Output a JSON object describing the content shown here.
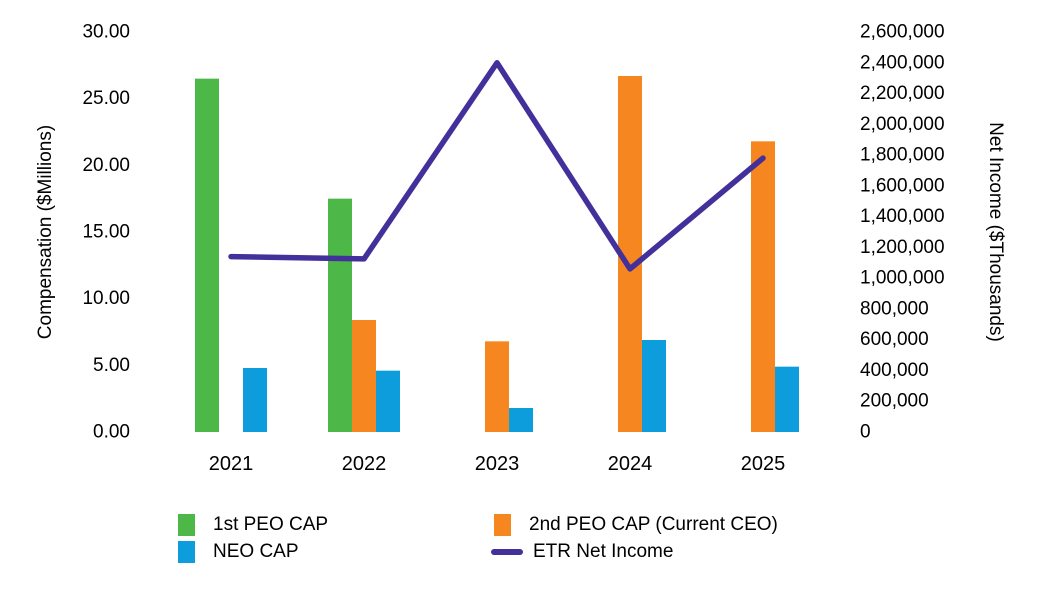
{
  "chart_data": {
    "type": "bar+line combo",
    "categories": [
      "2021",
      "2022",
      "2023",
      "2024",
      "2025"
    ],
    "bar_series": [
      {
        "name": "1st PEO CAP",
        "color": "#4DB748",
        "values": [
          26.5,
          17.5,
          0,
          0,
          0
        ]
      },
      {
        "name": "2nd PEO CAP (Current CEO)",
        "color": "#F6861F",
        "values": [
          0,
          8.4,
          6.8,
          26.7,
          21.8
        ]
      },
      {
        "name": "NEO CAP",
        "color": "#0E9DDC",
        "values": [
          4.8,
          4.6,
          1.8,
          6.9,
          4.9
        ]
      }
    ],
    "line_series": {
      "name": "ETR Net Income",
      "color": "#44309B",
      "values": [
        1140000,
        1125000,
        2400000,
        1060000,
        1780000
      ]
    },
    "left_axis": {
      "title": "Compensation ($Millions)",
      "min": 0,
      "max": 30,
      "step": 5,
      "tick_labels": [
        "0.00",
        "5.00",
        "10.00",
        "15.00",
        "20.00",
        "25.00",
        "30.00"
      ]
    },
    "right_axis": {
      "title": "Net Income ($Thousands)",
      "min": 0,
      "max": 2600000,
      "step": 200000,
      "tick_labels": [
        "0",
        "200,000",
        "400,000",
        "600,000",
        "800,000",
        "1,000,000",
        "1,200,000",
        "1,400,000",
        "1,600,000",
        "1,800,000",
        "2,000,000",
        "2,200,000",
        "2,400,000",
        "2,600,000"
      ]
    },
    "legend": [
      {
        "label": "1st PEO CAP",
        "swatch": "bar",
        "color": "#4DB748"
      },
      {
        "label": "NEO CAP",
        "swatch": "bar",
        "color": "#0E9DDC"
      },
      {
        "label": "2nd PEO CAP (Current CEO)",
        "swatch": "bar",
        "color": "#F6861F"
      },
      {
        "label": "ETR Net Income",
        "swatch": "line",
        "color": "#44309B"
      }
    ],
    "layout_hints": {
      "grid": "off",
      "axis_lines": "none",
      "legend_position": "bottom, two columns"
    }
  }
}
